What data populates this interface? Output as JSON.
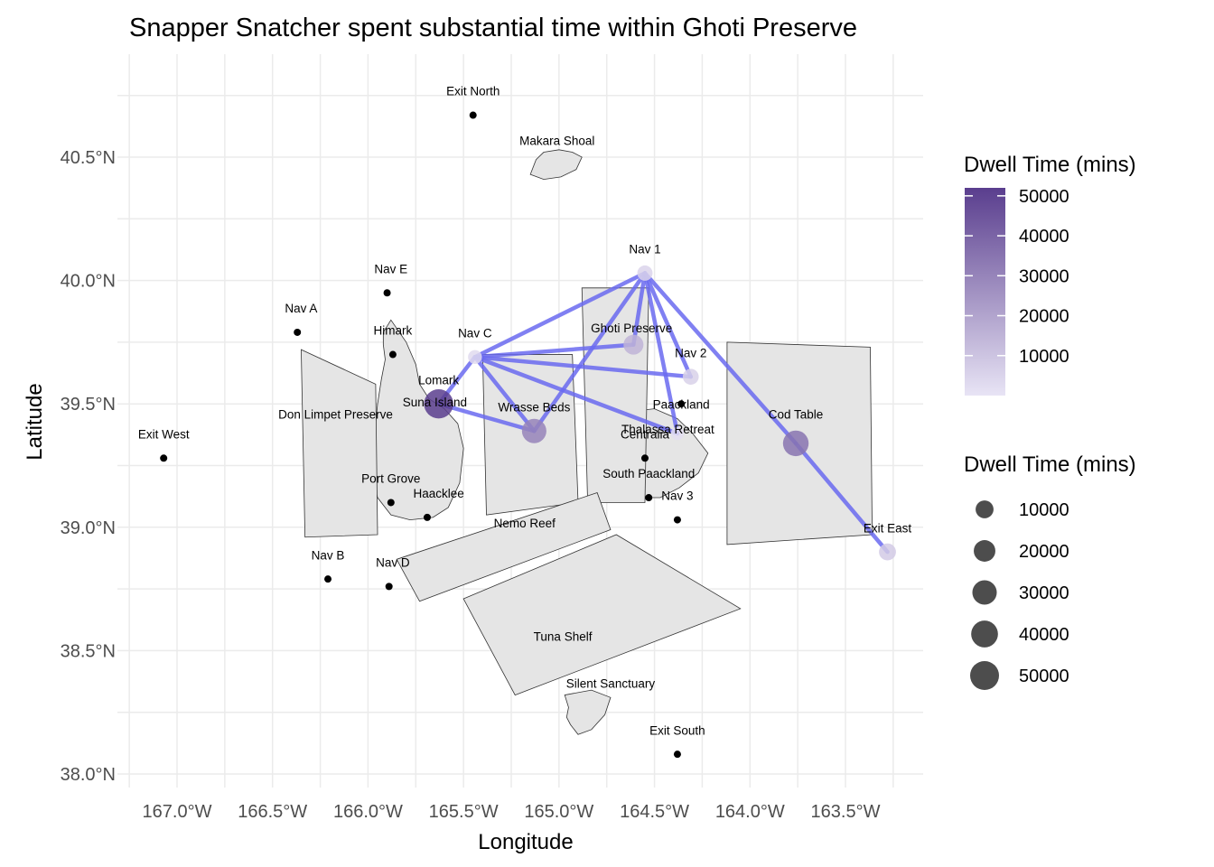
{
  "title": "Snapper Snatcher spent substantial time within Ghoti Preserve",
  "x_axis": {
    "title": "Longitude",
    "ticks": [
      {
        "value": -167.0,
        "label": "167.0°W"
      },
      {
        "value": -166.5,
        "label": "166.5°W"
      },
      {
        "value": -166.0,
        "label": "166.0°W"
      },
      {
        "value": -165.5,
        "label": "165.5°W"
      },
      {
        "value": -165.0,
        "label": "165.0°W"
      },
      {
        "value": -164.5,
        "label": "164.5°W"
      },
      {
        "value": -164.0,
        "label": "164.0°W"
      },
      {
        "value": -163.5,
        "label": "163.5°W"
      }
    ]
  },
  "y_axis": {
    "title": "Latitude",
    "ticks": [
      {
        "value": 38.0,
        "label": "38.0°N"
      },
      {
        "value": 38.5,
        "label": "38.5°N"
      },
      {
        "value": 39.0,
        "label": "39.0°N"
      },
      {
        "value": 39.5,
        "label": "39.5°N"
      },
      {
        "value": 40.0,
        "label": "40.0°N"
      },
      {
        "value": 40.5,
        "label": "40.5°N"
      }
    ]
  },
  "colors": {
    "path": "#6a6af0",
    "land": "#e5e5e5",
    "grid": "#ebebeb",
    "gradient_low": "#e8e4f5",
    "gradient_high": "#5a3e8e"
  },
  "regions": [
    {
      "name": "Makara Shoal",
      "type": "island",
      "coords": [
        [
          -165.15,
          40.43
        ],
        [
          -165.12,
          40.49
        ],
        [
          -165.08,
          40.52
        ],
        [
          -165.0,
          40.53
        ],
        [
          -164.93,
          40.52
        ],
        [
          -164.88,
          40.5
        ],
        [
          -164.91,
          40.45
        ],
        [
          -164.99,
          40.42
        ],
        [
          -165.08,
          40.41
        ]
      ],
      "label_at": [
        -165.01,
        40.55
      ]
    },
    {
      "name": "Silent Sanctuary",
      "type": "island",
      "coords": [
        [
          -164.97,
          38.32
        ],
        [
          -164.83,
          38.34
        ],
        [
          -164.73,
          38.31
        ],
        [
          -164.76,
          38.24
        ],
        [
          -164.83,
          38.18
        ],
        [
          -164.9,
          38.16
        ],
        [
          -164.94,
          38.2
        ],
        [
          -164.96,
          38.23
        ],
        [
          -164.95,
          38.27
        ]
      ],
      "label_at": [
        -164.73,
        38.35
      ]
    },
    {
      "name": "Suna Island",
      "type": "island",
      "coords": [
        [
          -165.92,
          39.79
        ],
        [
          -165.88,
          39.84
        ],
        [
          -165.8,
          39.75
        ],
        [
          -165.75,
          39.66
        ],
        [
          -165.73,
          39.58
        ],
        [
          -165.68,
          39.52
        ],
        [
          -165.6,
          39.48
        ],
        [
          -165.53,
          39.42
        ],
        [
          -165.5,
          39.32
        ],
        [
          -165.52,
          39.18
        ],
        [
          -165.58,
          39.08
        ],
        [
          -165.66,
          39.04
        ],
        [
          -165.78,
          39.03
        ],
        [
          -165.88,
          39.05
        ],
        [
          -165.95,
          39.12
        ],
        [
          -165.99,
          39.25
        ],
        [
          -165.99,
          39.35
        ],
        [
          -165.96,
          39.42
        ],
        [
          -165.95,
          39.5
        ],
        [
          -165.93,
          39.6
        ],
        [
          -165.91,
          39.68
        ],
        [
          -165.92,
          39.74
        ]
      ],
      "label_at": [
        -165.65,
        39.49
      ]
    },
    {
      "name": "Thalassa Retreat",
      "type": "island",
      "coords": [
        [
          -164.72,
          39.42
        ],
        [
          -164.62,
          39.47
        ],
        [
          -164.5,
          39.48
        ],
        [
          -164.38,
          39.44
        ],
        [
          -164.3,
          39.38
        ],
        [
          -164.22,
          39.3
        ],
        [
          -164.27,
          39.22
        ],
        [
          -164.37,
          39.16
        ],
        [
          -164.47,
          39.12
        ],
        [
          -164.56,
          39.12
        ],
        [
          -164.66,
          39.18
        ],
        [
          -164.72,
          39.25
        ],
        [
          -164.75,
          39.33
        ]
      ],
      "label_at": [
        -164.43,
        39.38
      ]
    },
    {
      "name": "Don Limpet Preserve",
      "type": "preserve",
      "coords": [
        [
          -166.35,
          39.72
        ],
        [
          -165.96,
          39.58
        ],
        [
          -165.95,
          38.97
        ],
        [
          -166.33,
          38.96
        ]
      ],
      "label_at": [
        -166.17,
        39.44
      ]
    },
    {
      "name": "Ghoti Preserve",
      "type": "preserve",
      "coords": [
        [
          -164.88,
          39.97
        ],
        [
          -164.53,
          39.97
        ],
        [
          -164.55,
          39.1
        ],
        [
          -164.85,
          39.1
        ]
      ],
      "label_at": [
        -164.62,
        39.79
      ]
    },
    {
      "name": "Wrasse Beds",
      "type": "preserve",
      "coords": [
        [
          -165.4,
          39.7
        ],
        [
          -164.93,
          39.7
        ],
        [
          -164.9,
          39.1
        ],
        [
          -165.38,
          39.05
        ]
      ],
      "label_at": [
        -165.13,
        39.47
      ]
    },
    {
      "name": "Cod Table",
      "type": "preserve",
      "coords": [
        [
          -164.12,
          39.75
        ],
        [
          -163.37,
          39.73
        ],
        [
          -163.36,
          38.97
        ],
        [
          -164.12,
          38.93
        ]
      ],
      "label_at": [
        -163.76,
        39.44
      ]
    },
    {
      "name": "Nemo Reef",
      "type": "preserve",
      "coords": [
        [
          -165.85,
          38.87
        ],
        [
          -164.8,
          39.14
        ],
        [
          -164.73,
          38.99
        ],
        [
          -165.73,
          38.7
        ]
      ],
      "label_at": [
        -165.18,
        39.0
      ]
    },
    {
      "name": "Tuna Shelf",
      "type": "preserve",
      "coords": [
        [
          -165.5,
          38.71
        ],
        [
          -164.7,
          38.97
        ],
        [
          -164.05,
          38.67
        ],
        [
          -165.23,
          38.32
        ]
      ],
      "label_at": [
        -164.98,
        38.54
      ]
    }
  ],
  "places": [
    {
      "name": "Exit North",
      "lon": -165.45,
      "lat": 40.67,
      "label_at": [
        -165.45,
        40.75
      ]
    },
    {
      "name": "Exit West",
      "lon": -167.07,
      "lat": 39.28,
      "label_at": [
        -167.07,
        39.36
      ]
    },
    {
      "name": "Exit South",
      "lon": -164.38,
      "lat": 38.08,
      "label_at": [
        -164.38,
        38.16
      ]
    },
    {
      "name": "Nav A",
      "lon": -166.37,
      "lat": 39.79,
      "label_at": [
        -166.35,
        39.87
      ]
    },
    {
      "name": "Nav B",
      "lon": -166.21,
      "lat": 38.79,
      "label_at": [
        -166.21,
        38.87
      ]
    },
    {
      "name": "Nav D",
      "lon": -165.89,
      "lat": 38.76,
      "label_at": [
        -165.87,
        38.84
      ]
    },
    {
      "name": "Nav E",
      "lon": -165.9,
      "lat": 39.95,
      "label_at": [
        -165.88,
        40.03
      ]
    },
    {
      "name": "Nav 3",
      "lon": -164.38,
      "lat": 39.03,
      "label_at": [
        -164.38,
        39.11
      ]
    },
    {
      "name": "Himark",
      "lon": -165.87,
      "lat": 39.7,
      "label_at": [
        -165.87,
        39.78
      ]
    },
    {
      "name": "Port Grove",
      "lon": -165.88,
      "lat": 39.1,
      "label_at": [
        -165.88,
        39.18
      ]
    },
    {
      "name": "Haacklee",
      "lon": -165.69,
      "lat": 39.04,
      "label_at": [
        -165.63,
        39.12
      ]
    },
    {
      "name": "Centralia",
      "lon": -164.55,
      "lat": 39.28,
      "label_at": [
        -164.55,
        39.36
      ]
    },
    {
      "name": "Paackland",
      "lon": -164.36,
      "lat": 39.5,
      "label_at": [
        -164.36,
        39.48
      ]
    },
    {
      "name": "South Paackland",
      "lon": -164.53,
      "lat": 39.12,
      "label_at": [
        -164.53,
        39.2
      ]
    }
  ],
  "path_points": [
    {
      "name": "Nav 1",
      "lon": -164.55,
      "lat": 40.03,
      "dwell": 5000,
      "label_at": [
        -164.55,
        40.11
      ]
    },
    {
      "name": "Nav C",
      "lon": -165.44,
      "lat": 39.69,
      "dwell": 3000,
      "label_at": [
        -165.44,
        39.77
      ]
    },
    {
      "name": "Nav 2",
      "lon": -164.31,
      "lat": 39.61,
      "dwell": 6000,
      "label_at": [
        -164.31,
        39.69
      ]
    },
    {
      "name": "Ghoti Preserve",
      "lon": -164.61,
      "lat": 39.74,
      "dwell": 15000,
      "label_at": null
    },
    {
      "name": "Lomark",
      "lon": -165.63,
      "lat": 39.5,
      "dwell": 52000,
      "label_at": [
        -165.63,
        39.58
      ]
    },
    {
      "name": "Wrasse Beds",
      "lon": -165.13,
      "lat": 39.39,
      "dwell": 30000,
      "label_at": null
    },
    {
      "name": "Thalassa Retreat",
      "lon": -164.38,
      "lat": 39.38,
      "dwell": 2000,
      "label_at": null
    },
    {
      "name": "Cod Table",
      "lon": -163.76,
      "lat": 39.34,
      "dwell": 35000,
      "label_at": null
    },
    {
      "name": "Exit East",
      "lon": -163.28,
      "lat": 38.9,
      "dwell": 8000,
      "label_at": [
        -163.28,
        38.98
      ]
    }
  ],
  "path_segments": [
    [
      "Nav C",
      "Nav 1"
    ],
    [
      "Nav C",
      "Ghoti Preserve"
    ],
    [
      "Nav C",
      "Nav 2"
    ],
    [
      "Nav C",
      "Thalassa Retreat"
    ],
    [
      "Nav C",
      "Wrasse Beds"
    ],
    [
      "Nav C",
      "Lomark"
    ],
    [
      "Lomark",
      "Wrasse Beds"
    ],
    [
      "Wrasse Beds",
      "Nav 1"
    ],
    [
      "Nav 1",
      "Ghoti Preserve"
    ],
    [
      "Nav 1",
      "Thalassa Retreat"
    ],
    [
      "Nav 1",
      "Nav 2"
    ],
    [
      "Nav 1",
      "Cod Table"
    ],
    [
      "Cod Table",
      "Exit East"
    ]
  ],
  "legend_color": {
    "title": "Dwell Time (mins)",
    "min": 0,
    "max": 52000,
    "ticks": [
      {
        "value": 50000,
        "label": "50000"
      },
      {
        "value": 40000,
        "label": "40000"
      },
      {
        "value": 30000,
        "label": "30000"
      },
      {
        "value": 20000,
        "label": "20000"
      },
      {
        "value": 10000,
        "label": "10000"
      }
    ]
  },
  "legend_size": {
    "title": "Dwell Time (mins)",
    "entries": [
      {
        "value": 10000,
        "label": "10000"
      },
      {
        "value": 20000,
        "label": "20000"
      },
      {
        "value": 30000,
        "label": "30000"
      },
      {
        "value": 40000,
        "label": "40000"
      },
      {
        "value": 50000,
        "label": "50000"
      }
    ]
  }
}
